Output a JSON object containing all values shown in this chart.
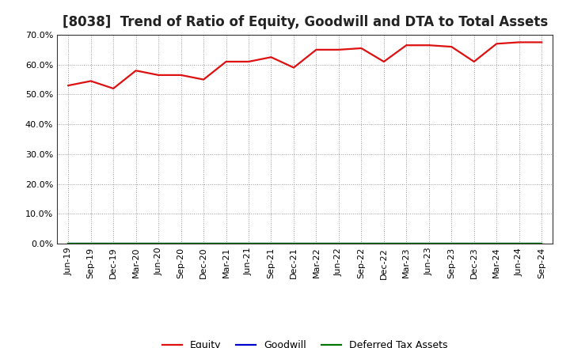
{
  "title": "[8038]  Trend of Ratio of Equity, Goodwill and DTA to Total Assets",
  "x_labels": [
    "Jun-19",
    "Sep-19",
    "Dec-19",
    "Mar-20",
    "Jun-20",
    "Sep-20",
    "Dec-20",
    "Mar-21",
    "Jun-21",
    "Sep-21",
    "Dec-21",
    "Mar-22",
    "Jun-22",
    "Sep-22",
    "Dec-22",
    "Mar-23",
    "Jun-23",
    "Sep-23",
    "Dec-23",
    "Mar-24",
    "Jun-24",
    "Sep-24"
  ],
  "equity": [
    0.53,
    0.545,
    0.52,
    0.58,
    0.565,
    0.565,
    0.55,
    0.61,
    0.61,
    0.625,
    0.59,
    0.65,
    0.65,
    0.655,
    0.61,
    0.665,
    0.665,
    0.66,
    0.61,
    0.67,
    0.675,
    0.675
  ],
  "goodwill": [
    0.0,
    0.0,
    0.0,
    0.0,
    0.0,
    0.0,
    0.0,
    0.0,
    0.0,
    0.0,
    0.0,
    0.0,
    0.0,
    0.0,
    0.0,
    0.0,
    0.0,
    0.0,
    0.0,
    0.0,
    0.0,
    0.0
  ],
  "dta": [
    0.0,
    0.0,
    0.0,
    0.0,
    0.0,
    0.0,
    0.0,
    0.0,
    0.0,
    0.0,
    0.0,
    0.0,
    0.0,
    0.0,
    0.0,
    0.0,
    0.0,
    0.0,
    0.0,
    0.0,
    0.0,
    0.0
  ],
  "equity_color": "#dd1111",
  "goodwill_color": "#0000cc",
  "dta_color": "#007700",
  "ylim": [
    0.0,
    0.7
  ],
  "yticks": [
    0.0,
    0.1,
    0.2,
    0.3,
    0.4,
    0.5,
    0.6,
    0.7
  ],
  "bg_color": "#ffffff",
  "plot_bg_color": "#ffffff",
  "grid_color": "#999999",
  "title_fontsize": 12,
  "axis_fontsize": 8,
  "legend_labels": [
    "Equity",
    "Goodwill",
    "Deferred Tax Assets"
  ]
}
